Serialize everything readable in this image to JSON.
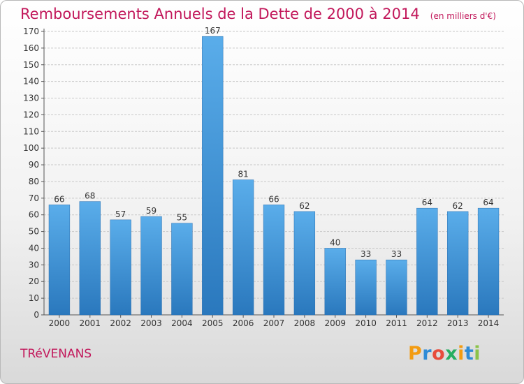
{
  "chart_data": {
    "type": "bar",
    "title": "Remboursements Annuels de la Dette de 2000 à 2014",
    "subtitle": "(en milliers d'€)",
    "categories": [
      "2000",
      "2001",
      "2002",
      "2003",
      "2004",
      "2005",
      "2006",
      "2007",
      "2008",
      "2009",
      "2010",
      "2011",
      "2012",
      "2013",
      "2014"
    ],
    "values": [
      66,
      68,
      57,
      59,
      55,
      167,
      81,
      66,
      62,
      40,
      33,
      33,
      64,
      62,
      64
    ],
    "ylim": [
      0,
      170
    ],
    "yticks": [
      0,
      10,
      20,
      30,
      40,
      50,
      60,
      70,
      80,
      90,
      100,
      110,
      120,
      130,
      140,
      150,
      160,
      170
    ],
    "grid": true,
    "bar_color": "#4fa3df",
    "bar_color_dark": "#2b7cc0"
  },
  "footer": {
    "town": "TRéVENANS",
    "brand": "Proxiti",
    "brand_colors": [
      "#f39c12",
      "#2e8bd6",
      "#e74c3c",
      "#27ae60",
      "#f39c12",
      "#2e8bd6",
      "#8bc34a"
    ]
  },
  "colors": {
    "title": "#c2185b",
    "grid": "#c8c8c8",
    "axis_text": "#333333"
  }
}
